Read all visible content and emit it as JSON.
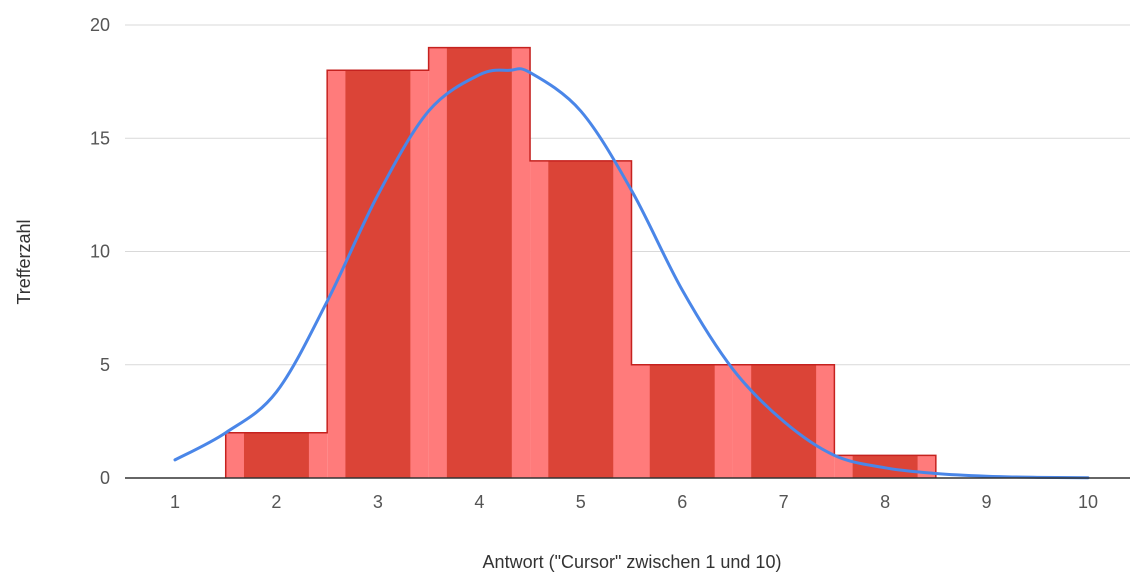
{
  "chart_data": {
    "type": "bar",
    "title": "",
    "xlabel": "Antwort (\"Cursor\" zwischen 1 und 10)",
    "ylabel": "Trefferzahl",
    "xlim": [
      0.5,
      10.5
    ],
    "ylim": [
      0,
      20
    ],
    "grid": true,
    "legend": "none",
    "x_ticks": [
      "1",
      "2",
      "3",
      "4",
      "5",
      "6",
      "7",
      "8",
      "9",
      "10"
    ],
    "y_ticks": [
      "0",
      "5",
      "10",
      "15",
      "20"
    ],
    "categories": [
      "1",
      "2",
      "3",
      "4",
      "5",
      "6",
      "7",
      "8",
      "9",
      "10"
    ],
    "values": [
      0,
      2,
      18,
      19,
      14,
      5,
      5,
      1,
      0,
      0
    ],
    "series": [
      {
        "type": "line",
        "smooth": true,
        "x": [
          1,
          1.5,
          2,
          2.5,
          3,
          3.5,
          4,
          4.3,
          4.5,
          5,
          5.5,
          6,
          6.5,
          7,
          7.5,
          8,
          8.5,
          9,
          9.5,
          10
        ],
        "y": [
          0.8,
          2.0,
          3.8,
          7.8,
          12.5,
          16.2,
          17.8,
          18.0,
          17.9,
          16.2,
          12.7,
          8.3,
          4.8,
          2.5,
          1.0,
          0.45,
          0.2,
          0.08,
          0.03,
          0.01
        ]
      }
    ],
    "colors": {
      "bar_dark": "#db4437",
      "bar_light": "#ff7b7b",
      "bar_outline": "#c5221f",
      "line": "#4a86e8",
      "grid": "#d9d9d9",
      "axis": "#333333"
    }
  }
}
